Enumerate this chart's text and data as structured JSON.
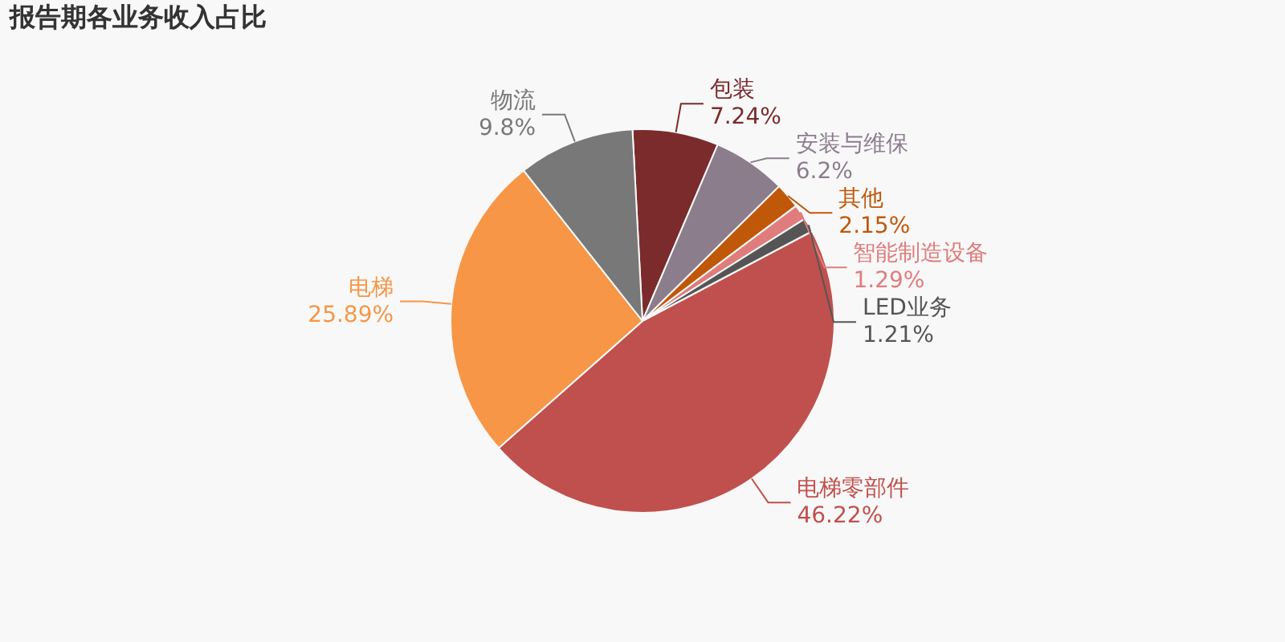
{
  "chart_data": {
    "type": "pie",
    "title": "报告期各业务收入占比",
    "categories": [
      "包装",
      "安装与维保",
      "其他",
      "智能制造设备",
      "LED业务",
      "电梯零部件",
      "电梯",
      "物流"
    ],
    "values": [
      7.24,
      6.2,
      2.15,
      1.29,
      1.21,
      46.22,
      25.89,
      9.8
    ],
    "value_labels": [
      "7.24%",
      "6.2%",
      "2.15%",
      "1.29%",
      "1.21%",
      "46.22%",
      "25.89%",
      "9.8%"
    ],
    "colors": [
      "#7b2b2b",
      "#8c7d8c",
      "#c0580a",
      "#e07c7c",
      "#555555",
      "#c0504d",
      "#f79646",
      "#787878"
    ],
    "legend": false
  }
}
